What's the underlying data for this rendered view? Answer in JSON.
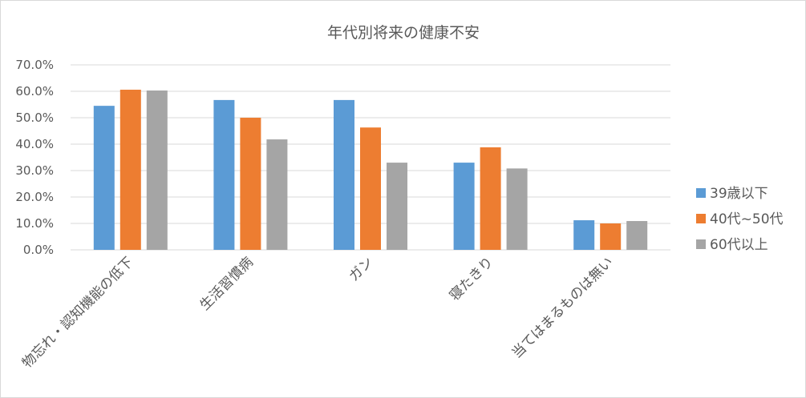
{
  "chart_data": {
    "type": "bar",
    "title": "年代別将来の健康不安",
    "categories": [
      "物忘れ・認知機能の低下",
      "生活習慣病",
      "ガン",
      "寝たきり",
      "当てはまるものは無い"
    ],
    "series": [
      {
        "name": "39歳以下",
        "color": "#5b9bd5",
        "values": [
          54.5,
          56.7,
          56.7,
          33.0,
          11.2
        ]
      },
      {
        "name": "40代~50代",
        "color": "#ed7d31",
        "values": [
          60.6,
          50.0,
          46.3,
          38.8,
          10.0
        ]
      },
      {
        "name": "60代以上",
        "color": "#a5a5a5",
        "values": [
          60.3,
          41.8,
          33.0,
          30.8,
          10.9
        ]
      }
    ],
    "y_ticks": [
      "0.0%",
      "10.0%",
      "20.0%",
      "30.0%",
      "40.0%",
      "50.0%",
      "60.0%",
      "70.0%"
    ],
    "ylim": [
      0,
      70
    ],
    "xlabel": "",
    "ylabel": "",
    "grid": true,
    "legend_position": "right"
  }
}
